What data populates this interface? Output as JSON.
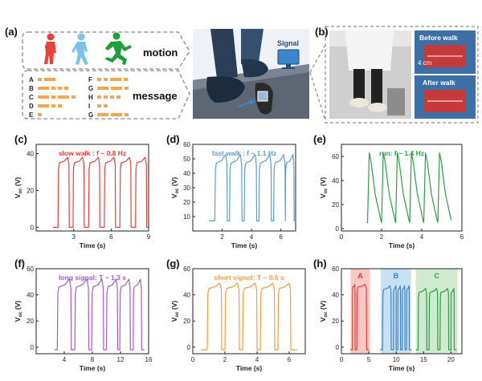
{
  "top": {
    "a_label": "(a)",
    "b_label": "(b)",
    "motion_label": "motion",
    "message_label": "message",
    "signal_label": "Signal",
    "morse_letters_left": [
      "A",
      "B",
      "C",
      "D",
      "E"
    ],
    "morse_letters_right": [
      "F",
      "G",
      "H",
      "I",
      "G"
    ],
    "before_walk_label": "Before walk",
    "after_walk_label": "After walk",
    "scale_label": "4 cm",
    "colors": {
      "red": "#e0413e",
      "blue": "#5aa9de",
      "green": "#1f9d3a",
      "dash": "#888888",
      "orange": "#f3a64a"
    }
  },
  "chart_data": [
    {
      "id": "c",
      "panel_label": "(c)",
      "type": "line",
      "annotation": "slow walk :  f ~ 0.8 Hz",
      "xlabel": "Time (s)",
      "ylabel": "V",
      "xlim": [
        0,
        9
      ],
      "ylim": [
        -2,
        45
      ],
      "xticks": [
        3,
        6,
        9
      ],
      "yticks": [
        0,
        20,
        40
      ],
      "color": "#e8403a",
      "series": [
        {
          "pulses": [
            [
              1.75,
              2.65
            ],
            [
              2.95,
              3.85
            ],
            [
              4.2,
              5.1
            ],
            [
              5.45,
              6.35
            ],
            [
              6.7,
              7.6
            ],
            [
              7.95,
              8.85
            ]
          ],
          "base": 0,
          "high": 35,
          "peak": 38
        }
      ]
    },
    {
      "id": "d",
      "panel_label": "(d)",
      "type": "line",
      "annotation": "fast walk :  f ~ 1.1 Hz",
      "xlabel": "Time (s)",
      "ylabel": "V",
      "xlim": [
        0,
        7
      ],
      "ylim": [
        0,
        60
      ],
      "xticks": [
        2,
        4,
        6
      ],
      "yticks": [
        10,
        20,
        30,
        40,
        50,
        60
      ],
      "color": "#5a9fd4",
      "series": [
        {
          "pulses": [
            [
              1.5,
              2.35
            ],
            [
              2.5,
              3.35
            ],
            [
              3.5,
              4.35
            ],
            [
              4.5,
              5.35
            ],
            [
              5.5,
              6.3
            ],
            [
              6.3,
              6.9
            ]
          ],
          "base": 7,
          "high": 47,
          "peak": 53
        }
      ]
    },
    {
      "id": "e",
      "panel_label": "(e)",
      "type": "line",
      "annotation": "run:  f ~ 1.4 Hz",
      "xlabel": "Time (s)",
      "ylabel": "V",
      "xlim": [
        0,
        6
      ],
      "ylim": [
        -2,
        70
      ],
      "xticks": [
        0,
        2,
        4,
        6
      ],
      "yticks": [
        0,
        20,
        40,
        60
      ],
      "color": "#2e9e45",
      "series": [
        {
          "spikes": [
            1.3,
            2.0,
            2.7,
            3.4,
            4.1,
            4.8
          ],
          "base": 5,
          "peak": 63,
          "width": 0.7
        }
      ]
    },
    {
      "id": "f",
      "panel_label": "(f)",
      "type": "line",
      "annotation": "long signal:  T ~ 1.3 s",
      "xlabel": "Time (s)",
      "ylabel": "V",
      "xlim": [
        0,
        16
      ],
      "ylim": [
        -5,
        60
      ],
      "xticks": [
        4,
        8,
        12,
        16
      ],
      "yticks": [
        0,
        20,
        40,
        60
      ],
      "color": "#a15fc7",
      "series": [
        {
          "pulses": [
            [
              3.0,
              5.0
            ],
            [
              5.5,
              7.5
            ],
            [
              7.9,
              9.6
            ],
            [
              10.0,
              11.6
            ],
            [
              11.9,
              13.4
            ],
            [
              13.8,
              15.0
            ]
          ],
          "base": -2,
          "high": 46,
          "peak": 52
        }
      ]
    },
    {
      "id": "g",
      "panel_label": "(g)",
      "type": "line",
      "annotation": "short signal:  T ~ 0.6 s",
      "xlabel": "Time (s)",
      "ylabel": "V",
      "xlim": [
        0,
        7
      ],
      "ylim": [
        -5,
        60
      ],
      "xticks": [
        0,
        2,
        4,
        6
      ],
      "yticks": [
        0,
        20,
        40,
        60
      ],
      "color": "#f3a040",
      "series": [
        {
          "pulses": [
            [
              0.9,
              1.8
            ],
            [
              2.0,
              2.9
            ],
            [
              3.1,
              4.0
            ],
            [
              4.2,
              5.1
            ],
            [
              5.3,
              6.1
            ]
          ],
          "base": -2,
          "high": 45,
          "peak": 49
        }
      ]
    },
    {
      "id": "h",
      "panel_label": "(h)",
      "type": "line",
      "annotation": "",
      "xlabel": "Time (s)",
      "ylabel": "V",
      "xlim": [
        0,
        22
      ],
      "ylim": [
        -5,
        60
      ],
      "xticks": [
        0,
        5,
        10,
        15,
        20
      ],
      "yticks": [
        0,
        20,
        40,
        60
      ],
      "regions": [
        {
          "label": "A",
          "x0": 1.7,
          "x1": 5.2,
          "color": "#f3b7b2",
          "text_color": "#d93a33"
        },
        {
          "label": "B",
          "x0": 7.2,
          "x1": 12.7,
          "color": "#b7d4ee",
          "text_color": "#3a86c9"
        },
        {
          "label": "C",
          "x0": 13.6,
          "x1": 21.2,
          "color": "#bfe3bf",
          "text_color": "#2e9e45"
        }
      ],
      "series": [
        {
          "name": "A",
          "color": "#e8403a",
          "pulses": [
            [
              2.0,
              2.5
            ],
            [
              2.8,
              4.6
            ]
          ],
          "base": -2,
          "high": 46,
          "peak": 48
        },
        {
          "name": "B",
          "color": "#3a86c9",
          "pulses": [
            [
              7.5,
              9.1
            ],
            [
              9.5,
              10.0
            ],
            [
              10.3,
              10.8
            ],
            [
              11.1,
              11.6
            ],
            [
              11.9,
              12.4
            ]
          ],
          "base": -2,
          "high": 44,
          "peak": 47
        },
        {
          "name": "C",
          "color": "#2e9e45",
          "pulses": [
            [
              14.0,
              15.6
            ],
            [
              16.0,
              17.6
            ],
            [
              18.0,
              19.6
            ],
            [
              20.0,
              20.6
            ]
          ],
          "base": -2,
          "high": 42,
          "peak": 45
        }
      ]
    }
  ]
}
